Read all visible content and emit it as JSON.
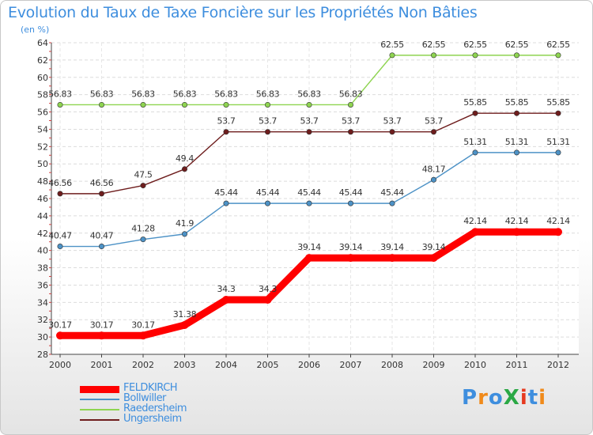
{
  "title": "Evolution du Taux de Taxe Foncière sur les Propriétés Non Bâties",
  "subtitle": "(en %)",
  "logo": {
    "text": "ProXiti",
    "colors": [
      "#3e8ede",
      "#f08a1a",
      "#3e8ede",
      "#2aa845",
      "#e63a1f",
      "#3e8ede",
      "#f08a1a"
    ]
  },
  "chart_data": {
    "type": "line",
    "title": "Evolution du Taux de Taxe Foncière sur les Propriétés Non Bâties",
    "ylabel": "(en %)",
    "xlabel": "",
    "x": [
      "2000",
      "2001",
      "2002",
      "2003",
      "2004",
      "2005",
      "2006",
      "2007",
      "2008",
      "2009",
      "2010",
      "2011",
      "2012"
    ],
    "ylim": [
      28,
      64
    ],
    "yticks": [
      28,
      30,
      32,
      34,
      36,
      38,
      40,
      42,
      44,
      46,
      48,
      50,
      52,
      54,
      56,
      58,
      60,
      62,
      64
    ],
    "grid": "horizontal",
    "legend_position": "bottom-left",
    "series": [
      {
        "name": "FELDKIRCH",
        "color": "#ff0000",
        "emphasis": true,
        "values": [
          30.17,
          30.17,
          30.17,
          31.38,
          34.3,
          34.3,
          39.14,
          39.14,
          39.14,
          39.14,
          42.14,
          42.14,
          42.14
        ],
        "labels": [
          "30.17",
          "30.17",
          "30.17",
          "31.38",
          "34.3",
          "34.3",
          "39.14",
          "39.14",
          "39.14",
          "39.14",
          "42.14",
          "42.14",
          "42.14"
        ]
      },
      {
        "name": "Bollwiller",
        "color": "#4d92c6",
        "values": [
          40.47,
          40.47,
          41.28,
          41.9,
          45.44,
          45.44,
          45.44,
          45.44,
          45.44,
          48.17,
          51.31,
          51.31,
          51.31
        ],
        "labels": [
          "40.47",
          "40.47",
          "41.28",
          "41.9",
          "45.44",
          "45.44",
          "45.44",
          "45.44",
          "45.44",
          "48.17",
          "51.31",
          "51.31",
          "51.31"
        ]
      },
      {
        "name": "Raedersheim",
        "color": "#8ed450",
        "values": [
          56.83,
          56.83,
          56.83,
          56.83,
          56.83,
          56.83,
          56.83,
          56.83,
          62.55,
          62.55,
          62.55,
          62.55,
          62.55
        ],
        "labels": [
          "56.83",
          "56.83",
          "56.83",
          "56.83",
          "56.83",
          "56.83",
          "56.83",
          "56.83",
          "62.55",
          "62.55",
          "62.55",
          "62.55",
          "62.55"
        ]
      },
      {
        "name": "Ungersheim",
        "color": "#6e1d1d",
        "values": [
          46.56,
          46.56,
          47.5,
          49.4,
          53.7,
          53.7,
          53.7,
          53.7,
          53.7,
          53.7,
          55.85,
          55.85,
          55.85
        ],
        "labels": [
          "46.56",
          "46.56",
          "47.5",
          "49.4",
          "53.7",
          "53.7",
          "53.7",
          "53.7",
          "53.7",
          "53.7",
          "55.85",
          "55.85",
          "55.85"
        ]
      }
    ]
  }
}
